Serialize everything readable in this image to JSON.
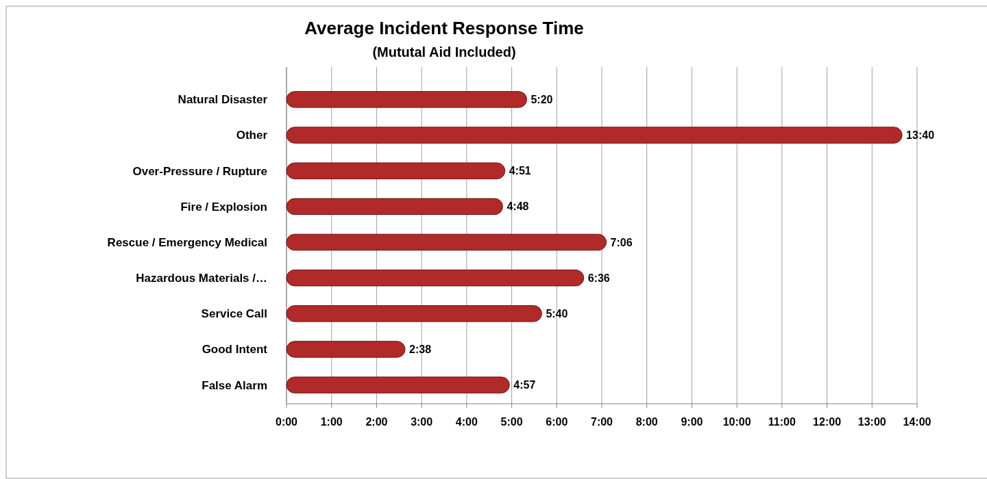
{
  "chart_data": {
    "type": "bar",
    "orientation": "horizontal",
    "title": "Average Incident Response Time",
    "subtitle": "(Mututal Aid Included)",
    "categories": [
      "Natural Disaster",
      "Other",
      "Over-Pressure / Rupture",
      "Fire / Explosion",
      "Rescue / Emergency Medical",
      "Hazardous Materials /…",
      "Service Call",
      "Good Intent",
      "False Alarm"
    ],
    "values": [
      5.333,
      13.667,
      4.85,
      4.8,
      7.1,
      6.6,
      5.667,
      2.633,
      4.95
    ],
    "value_labels": [
      "5:20",
      "13:40",
      "4:51",
      "4:48",
      "7:06",
      "6:36",
      "5:40",
      "2:38",
      "4:57"
    ],
    "color": "#b02a2a",
    "xlim": [
      0,
      14
    ],
    "xticks": [
      {
        "value": 0,
        "label": "0:00"
      },
      {
        "value": 1,
        "label": "1:00"
      },
      {
        "value": 2,
        "label": "2:00"
      },
      {
        "value": 3,
        "label": "3:00"
      },
      {
        "value": 4,
        "label": "4:00"
      },
      {
        "value": 5,
        "label": "5:00"
      },
      {
        "value": 6,
        "label": "6:00"
      },
      {
        "value": 7,
        "label": "7:00"
      },
      {
        "value": 8,
        "label": "8:00"
      },
      {
        "value": 9,
        "label": "9:00"
      },
      {
        "value": 10,
        "label": "10:00"
      },
      {
        "value": 11,
        "label": "11:00"
      },
      {
        "value": 12,
        "label": "12:00"
      },
      {
        "value": 13,
        "label": "13:00"
      },
      {
        "value": 14,
        "label": "14:00"
      }
    ],
    "grid": "x"
  }
}
